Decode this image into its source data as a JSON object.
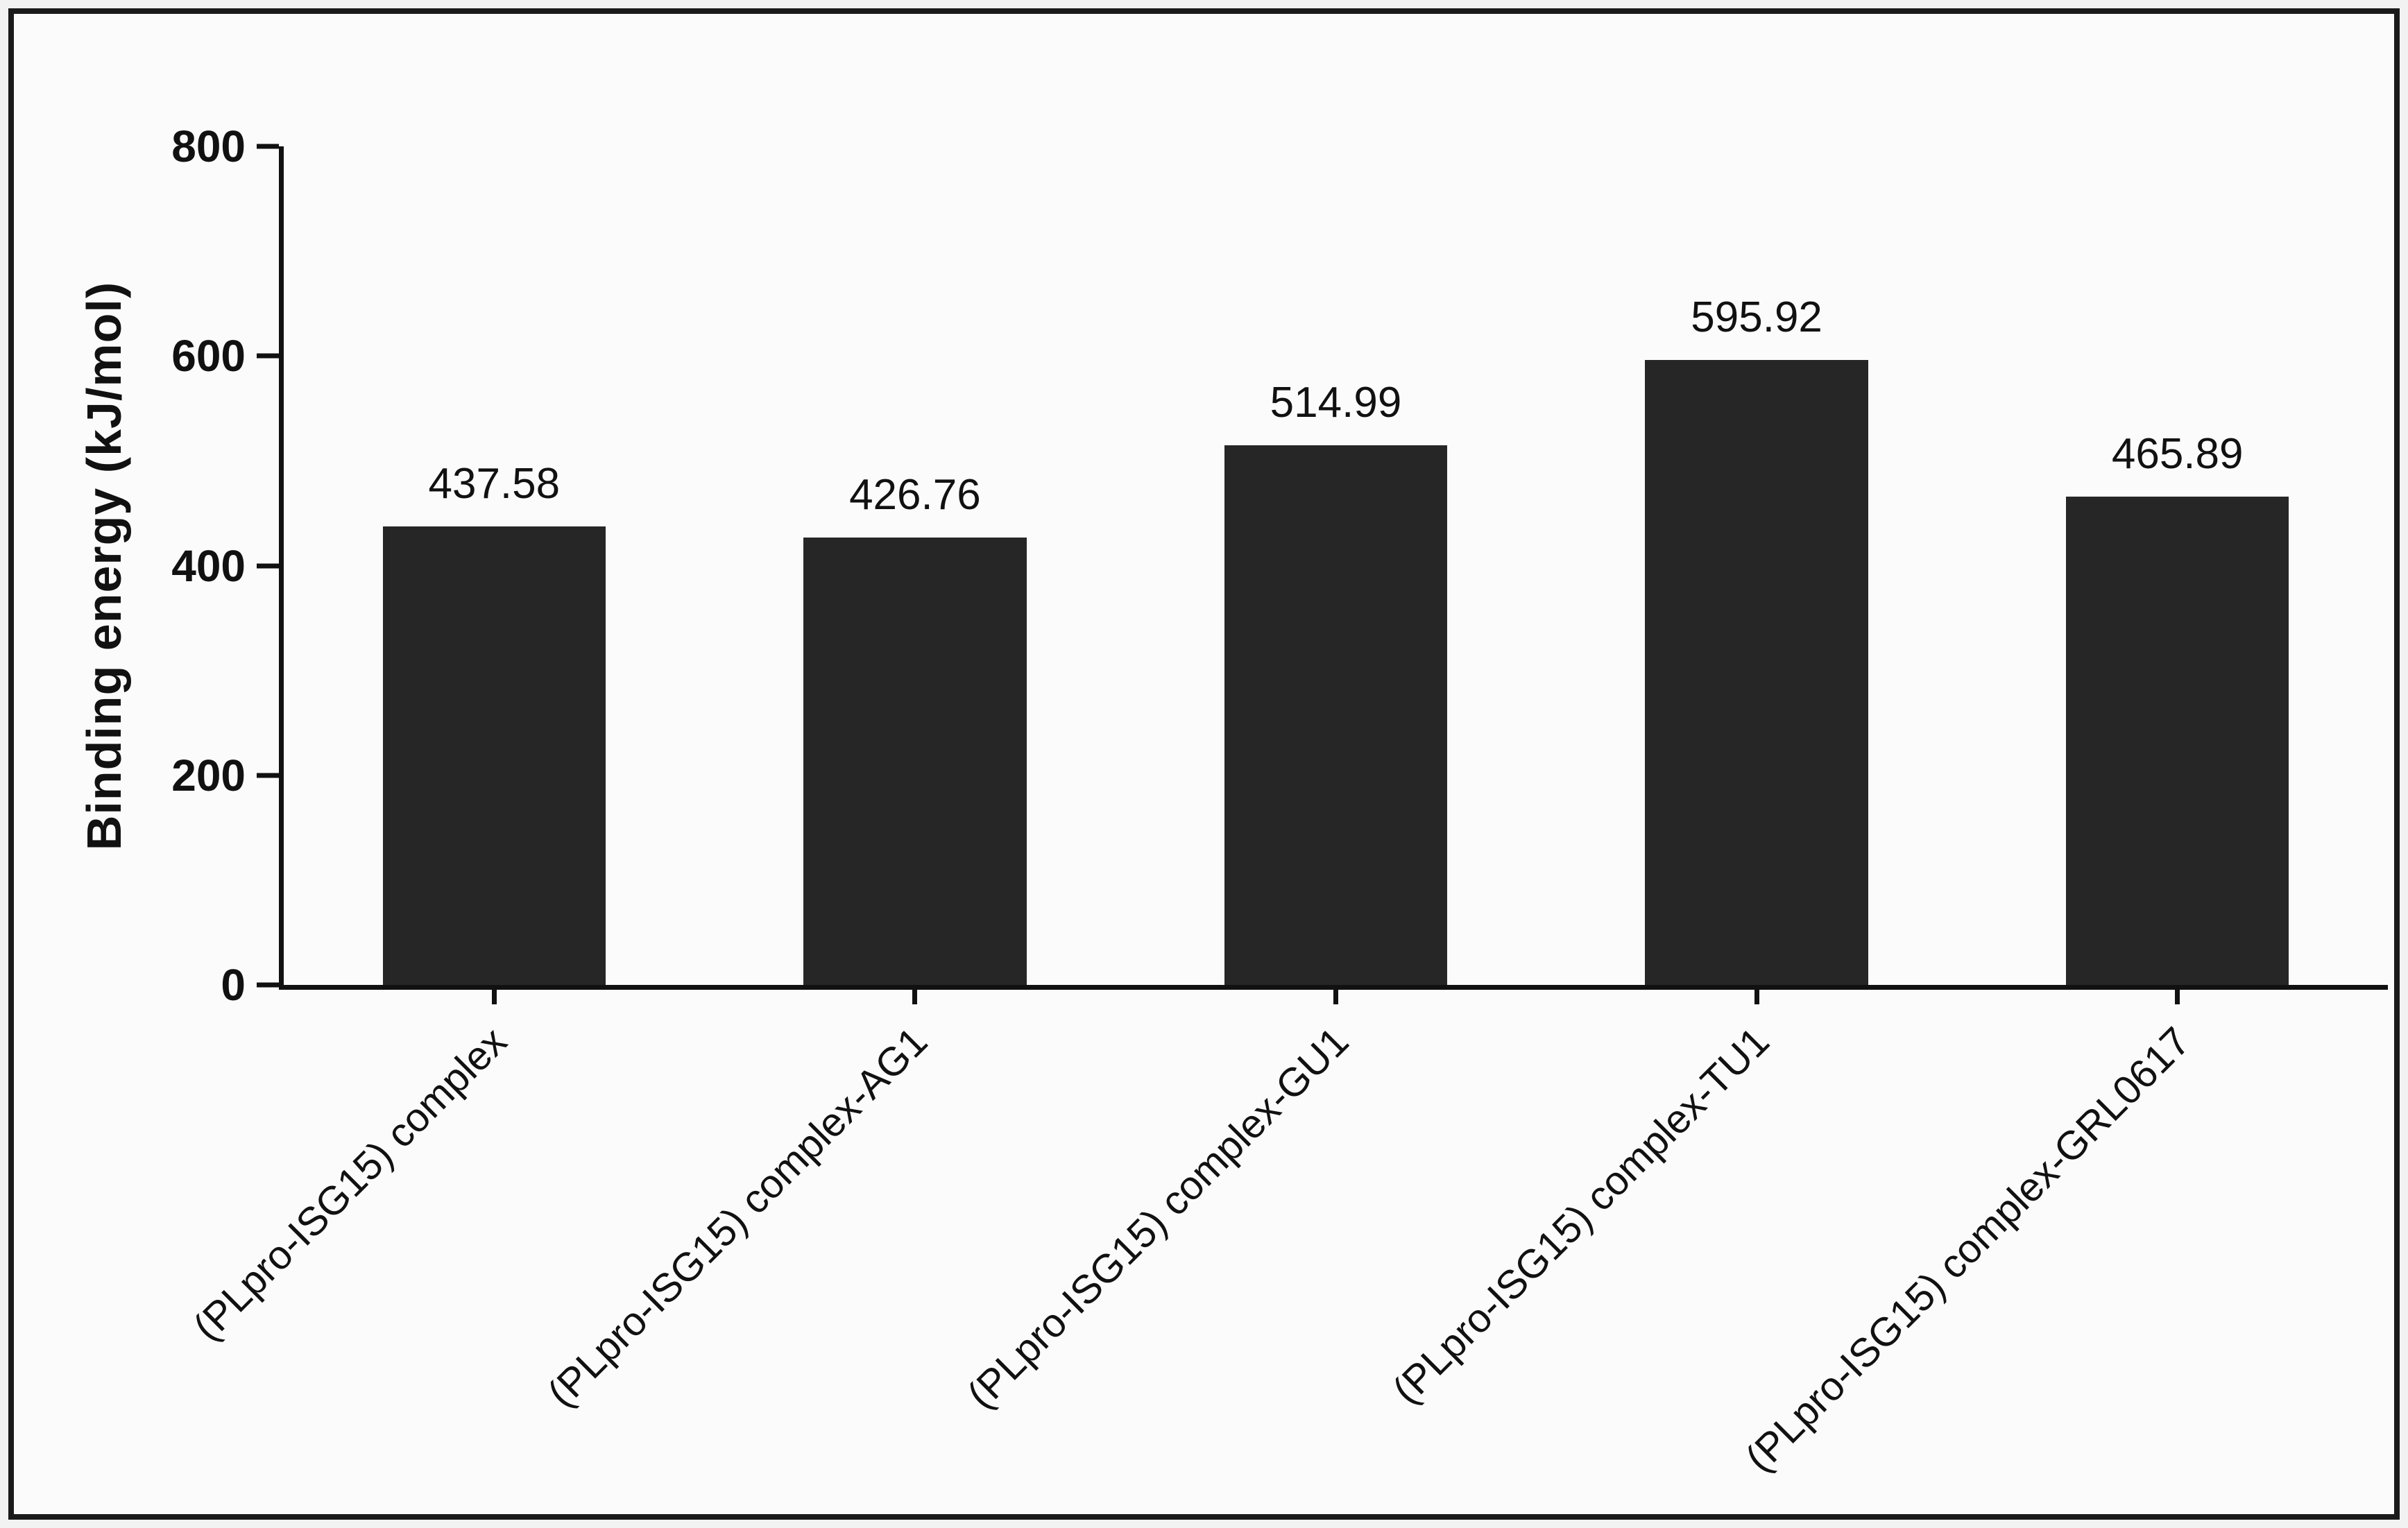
{
  "figure": {
    "background": "#fbfbfb",
    "border_color": "#1a1a1a",
    "axis_color": "#111111",
    "text_color": "#111111"
  },
  "chart_data": {
    "type": "bar",
    "ylabel": "Binding energy (kJ/mol)",
    "ylim": [
      0,
      800
    ],
    "yticks": [
      0,
      200,
      400,
      600,
      800
    ],
    "grid": false,
    "bar_color": "#262626",
    "bar_width_frac": 0.53,
    "categories": [
      "(PLpro-ISG15) complex",
      "(PLpro-ISG15) complex-AG1",
      "(PLpro-ISG15) complex-GU1",
      "(PLpro-ISG15) complex-TU1",
      "(PLpro-ISG15) complex-GRL0617"
    ],
    "values": [
      437.58,
      426.76,
      514.99,
      595.92,
      465.89
    ],
    "value_labels": [
      "437.58",
      "426.76",
      "514.99",
      "595.92",
      "465.89"
    ]
  }
}
